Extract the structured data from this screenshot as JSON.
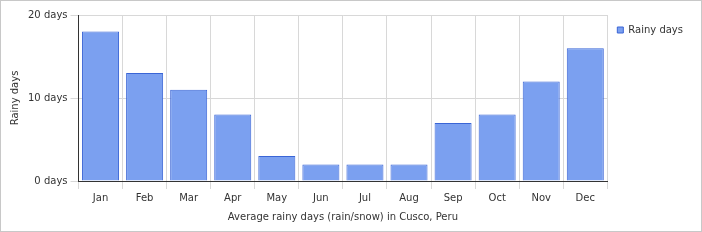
{
  "chart_data": {
    "type": "bar",
    "x_label": "Average rainy days (rain/snow) in Cusco, Peru",
    "y_label": "Rainy days",
    "categories": [
      "Jan",
      "Feb",
      "Mar",
      "Apr",
      "May",
      "Jun",
      "Jul",
      "Aug",
      "Sep",
      "Oct",
      "Nov",
      "Dec"
    ],
    "series": [
      {
        "name": "Rainy days",
        "color": "#7ba0f0",
        "values": [
          18,
          13,
          11,
          8,
          3,
          2,
          2,
          2,
          7,
          8,
          12,
          16
        ]
      }
    ],
    "ylim": [
      0,
      20
    ],
    "yticks": [
      {
        "value": 0,
        "label": "0 days"
      },
      {
        "value": 10,
        "label": "10 days"
      },
      {
        "value": 20,
        "label": "20 days"
      }
    ],
    "grid": true,
    "legend": "right"
  }
}
